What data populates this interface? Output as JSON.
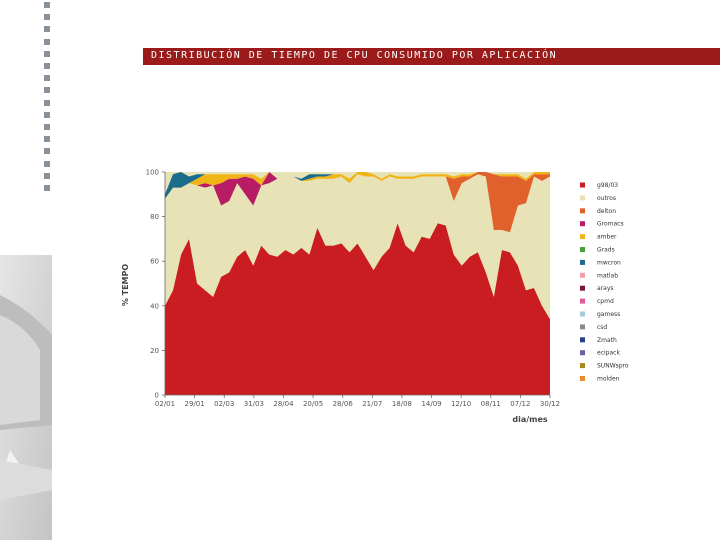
{
  "header": {
    "title": "DISTRIBUCIÓN DE TIEMPO DE CPU CONSUMIDO POR APLICACIÓN"
  },
  "colors": {
    "accent": "#9b1b1b"
  },
  "chart_data": {
    "type": "area",
    "stacked": true,
    "xlabel": "dia/mes",
    "ylabel": "% TEMPO",
    "ylim": [
      0,
      100
    ],
    "yticks": [
      0,
      20,
      40,
      60,
      80,
      100
    ],
    "grid": false,
    "legend_position": "right",
    "x_ticks": [
      "02/01",
      "29/01",
      "02/03",
      "31/03",
      "28/04",
      "20/05",
      "28/06",
      "21/07",
      "18/08",
      "14/09",
      "12/10",
      "08/11",
      "07/12",
      "30/12"
    ],
    "series": [
      {
        "name": "g98/03",
        "color": "#c91d22",
        "values": [
          40,
          47,
          63,
          70,
          50,
          47,
          44,
          53,
          55,
          62,
          65,
          58,
          67,
          63,
          62,
          65,
          63,
          66,
          63,
          75,
          67,
          67,
          68,
          64,
          68,
          62,
          56,
          62,
          66,
          77,
          67,
          64,
          71,
          70,
          77,
          76,
          63,
          58,
          62,
          64,
          55,
          44,
          65,
          64,
          58,
          47,
          48,
          40,
          34
        ]
      },
      {
        "name": "outros",
        "color": "#e8e3b6",
        "values": [
          48,
          46,
          30,
          25,
          44,
          46,
          50,
          32,
          32,
          33,
          25,
          27,
          27,
          32,
          35,
          33,
          35,
          30,
          33,
          22,
          30,
          30,
          30,
          31,
          31,
          36,
          42,
          34,
          32,
          20,
          30,
          33,
          27,
          28,
          21,
          22,
          24,
          37,
          35,
          35,
          43,
          30,
          9,
          9,
          27,
          39,
          50,
          56,
          64
        ]
      },
      {
        "name": "delton",
        "color": "#e1612c",
        "values": [
          0,
          0,
          0,
          0,
          0,
          0,
          0,
          0,
          0,
          0,
          0,
          0,
          0,
          0,
          0,
          0,
          0,
          0,
          0,
          0,
          0,
          0,
          0,
          0,
          0,
          0,
          0,
          0,
          0,
          0,
          0,
          0,
          0,
          0,
          0,
          0,
          10,
          3,
          1,
          1,
          2,
          25,
          24,
          25,
          13,
          10,
          1,
          3,
          1
        ]
      },
      {
        "name": "Gromacs",
        "color": "#b81c64",
        "values": [
          0,
          0,
          0,
          0,
          0,
          2,
          0,
          10,
          10,
          2,
          8,
          12,
          0,
          5,
          0,
          0,
          0,
          0,
          0,
          0,
          0,
          0,
          0,
          0,
          0,
          0,
          0,
          0,
          0,
          0,
          0,
          0,
          0,
          0,
          0,
          0,
          0,
          0,
          0,
          0,
          0,
          0,
          0,
          0,
          0,
          0,
          0,
          0,
          0
        ]
      },
      {
        "name": "amber",
        "color": "#f1b417",
        "values": [
          0,
          0,
          0,
          0,
          3,
          4,
          5,
          4,
          2,
          2,
          1,
          2,
          3,
          0,
          0,
          0,
          0,
          0,
          1,
          1,
          1,
          2,
          1,
          2,
          1,
          2,
          1,
          1,
          1,
          1,
          1,
          1,
          1,
          1,
          1,
          1,
          1,
          1,
          1,
          0,
          0,
          0,
          1,
          1,
          1,
          1,
          1,
          1,
          1
        ]
      },
      {
        "name": "Grads",
        "color": "#4aa03a",
        "values": [
          0,
          0,
          0,
          0,
          0,
          0,
          0,
          0,
          0,
          0,
          0,
          0,
          0,
          0,
          0,
          0,
          0,
          0,
          0,
          0,
          0,
          0,
          0,
          0,
          0,
          0,
          0,
          0,
          0,
          0,
          0,
          0,
          0,
          0,
          0,
          0,
          0,
          0,
          0,
          0,
          0,
          0,
          0,
          0,
          0,
          0,
          0,
          0,
          0
        ]
      },
      {
        "name": "mwcron",
        "color": "#1b6b8a",
        "values": [
          2,
          6,
          7,
          3,
          2,
          0,
          0,
          0,
          0,
          0,
          0,
          0,
          0,
          0,
          0,
          0,
          0,
          1,
          2,
          1,
          1,
          0,
          0,
          0,
          0,
          0,
          0,
          0,
          0,
          0,
          0,
          0,
          0,
          0,
          0,
          0,
          0,
          0,
          0,
          0,
          0,
          0,
          0,
          0,
          0,
          0,
          0,
          0,
          0
        ]
      },
      {
        "name": "matlab",
        "color": "#f1a0a6",
        "values": [
          0,
          0,
          0,
          0,
          0,
          0,
          0,
          0,
          0,
          0,
          0,
          0,
          0,
          0,
          0,
          0,
          0,
          0,
          0,
          0,
          0,
          0,
          0,
          0,
          0,
          0,
          0,
          0,
          0,
          0,
          0,
          0,
          0,
          0,
          0,
          0,
          0,
          0,
          0,
          0,
          0,
          0,
          0,
          0,
          0,
          0,
          0,
          0,
          0
        ]
      },
      {
        "name": "arays",
        "color": "#7a1a3a",
        "values": [
          0,
          0,
          0,
          0,
          0,
          0,
          0,
          0,
          0,
          0,
          0,
          0,
          0,
          0,
          0,
          0,
          0,
          0,
          0,
          0,
          0,
          0,
          0,
          0,
          0,
          0,
          0,
          0,
          0,
          0,
          0,
          0,
          0,
          0,
          0,
          0,
          0,
          0,
          0,
          0,
          0,
          0,
          0,
          0,
          0,
          0,
          0,
          0,
          0
        ]
      },
      {
        "name": "cpmd",
        "color": "#e25a9b",
        "values": [
          0,
          0,
          0,
          0,
          0,
          0,
          0,
          0,
          0,
          0,
          0,
          0,
          0,
          0,
          0,
          0,
          0,
          0,
          0,
          0,
          0,
          0,
          0,
          0,
          0,
          0,
          0,
          0,
          0,
          0,
          0,
          0,
          0,
          0,
          0,
          0,
          0,
          0,
          0,
          0,
          0,
          0,
          0,
          0,
          0,
          0,
          0,
          0,
          0
        ]
      },
      {
        "name": "gamess",
        "color": "#a7c7de",
        "values": [
          0,
          0,
          0,
          0,
          0,
          0,
          0,
          0,
          0,
          0,
          0,
          0,
          0,
          0,
          0,
          0,
          0,
          0,
          0,
          0,
          0,
          0,
          0,
          0,
          0,
          0,
          0,
          0,
          0,
          0,
          0,
          0,
          0,
          0,
          0,
          0,
          0,
          0,
          0,
          0,
          0,
          0,
          0,
          0,
          0,
          0,
          0,
          0,
          0
        ]
      },
      {
        "name": "csd",
        "color": "#8a8a8a",
        "values": [
          0,
          0,
          0,
          0,
          0,
          0,
          0,
          0,
          0,
          0,
          0,
          0,
          0,
          0,
          0,
          0,
          0,
          0,
          0,
          0,
          0,
          0,
          0,
          0,
          0,
          0,
          0,
          0,
          0,
          0,
          0,
          0,
          0,
          0,
          0,
          0,
          0,
          0,
          0,
          0,
          0,
          0,
          0,
          0,
          0,
          0,
          0,
          0,
          0
        ]
      },
      {
        "name": "Zmath",
        "color": "#2a3e8c",
        "values": [
          0,
          0,
          0,
          0,
          0,
          0,
          0,
          0,
          0,
          0,
          0,
          0,
          0,
          0,
          0,
          0,
          0,
          0,
          0,
          0,
          0,
          0,
          0,
          0,
          0,
          0,
          0,
          0,
          0,
          0,
          0,
          0,
          0,
          0,
          0,
          0,
          0,
          0,
          0,
          0,
          0,
          0,
          0,
          0,
          0,
          0,
          0,
          0,
          0
        ]
      },
      {
        "name": "ecipack",
        "color": "#6a62a8",
        "values": [
          0,
          0,
          0,
          0,
          0,
          0,
          0,
          0,
          0,
          0,
          0,
          0,
          0,
          0,
          0,
          0,
          0,
          0,
          0,
          0,
          0,
          0,
          0,
          0,
          0,
          0,
          0,
          0,
          0,
          0,
          0,
          0,
          0,
          0,
          0,
          0,
          0,
          0,
          0,
          0,
          0,
          0,
          0,
          0,
          0,
          0,
          0,
          0,
          0
        ]
      },
      {
        "name": "SUNWspro",
        "color": "#a8891f",
        "values": [
          0,
          0,
          0,
          0,
          0,
          0,
          0,
          0,
          0,
          0,
          0,
          0,
          0,
          0,
          0,
          0,
          0,
          0,
          0,
          0,
          0,
          0,
          0,
          0,
          0,
          0,
          0,
          0,
          0,
          0,
          0,
          0,
          0,
          0,
          0,
          0,
          0,
          0,
          0,
          0,
          0,
          0,
          0,
          0,
          0,
          0,
          0,
          0,
          0
        ]
      },
      {
        "name": "molden",
        "color": "#ee8a2d",
        "values": [
          0,
          0,
          0,
          0,
          0,
          0,
          0,
          0,
          0,
          0,
          0,
          0,
          0,
          0,
          0,
          0,
          0,
          0,
          0,
          0,
          0,
          0,
          0,
          0,
          0,
          0,
          0,
          0,
          0,
          0,
          0,
          0,
          0,
          0,
          0,
          0,
          0,
          0,
          0,
          0,
          0,
          0,
          0,
          0,
          0,
          0,
          0,
          0,
          0
        ]
      }
    ]
  }
}
